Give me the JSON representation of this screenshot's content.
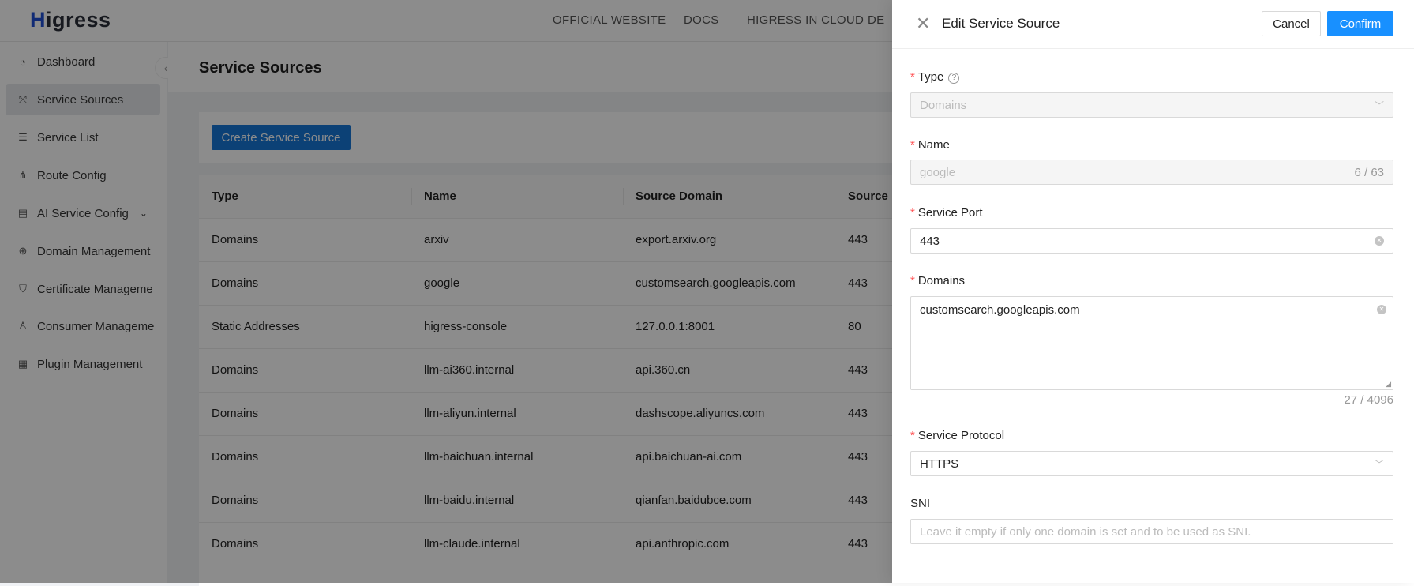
{
  "app": {
    "logo": "Higress",
    "logo_accent": "#1f4fd6"
  },
  "topnav": [
    "OFFICIAL WEBSITE",
    "DOCS",
    "HIGRESS IN CLOUD",
    "DE"
  ],
  "sidebar": {
    "items": [
      {
        "label": "Dashboard",
        "icon": "dashboard-icon"
      },
      {
        "label": "Service Sources",
        "icon": "service-sources-icon",
        "selected": true
      },
      {
        "label": "Service List",
        "icon": "list-icon"
      },
      {
        "label": "Route Config",
        "icon": "route-icon"
      },
      {
        "label": "AI Service Config",
        "icon": "ai-icon",
        "expandable": true
      },
      {
        "label": "Domain Management",
        "icon": "globe-icon"
      },
      {
        "label": "Certificate Manageme",
        "icon": "shield-icon"
      },
      {
        "label": "Consumer Manageme",
        "icon": "user-icon"
      },
      {
        "label": "Plugin Management",
        "icon": "plugin-icon"
      }
    ]
  },
  "page": {
    "title": "Service Sources",
    "create_button": "Create Service Source"
  },
  "table": {
    "columns": [
      "Type",
      "Name",
      "Source Domain",
      "Source P"
    ],
    "rows": [
      [
        "Domains",
        "arxiv",
        "export.arxiv.org",
        "443"
      ],
      [
        "Domains",
        "google",
        "customsearch.googleapis.com",
        "443"
      ],
      [
        "Static Addresses",
        "higress-console",
        "127.0.0.1:8001",
        "80"
      ],
      [
        "Domains",
        "llm-ai360.internal",
        "api.360.cn",
        "443"
      ],
      [
        "Domains",
        "llm-aliyun.internal",
        "dashscope.aliyuncs.com",
        "443"
      ],
      [
        "Domains",
        "llm-baichuan.internal",
        "api.baichuan-ai.com",
        "443"
      ],
      [
        "Domains",
        "llm-baidu.internal",
        "qianfan.baidubce.com",
        "443"
      ],
      [
        "Domains",
        "llm-claude.internal",
        "api.anthropic.com",
        "443"
      ]
    ]
  },
  "drawer": {
    "title": "Edit Service Source",
    "cancel": "Cancel",
    "confirm": "Confirm",
    "primary_color": "#1890ff",
    "fields": {
      "type": {
        "label": "Type",
        "value": "Domains",
        "disabled": true
      },
      "name": {
        "label": "Name",
        "value": "google",
        "count": "6 / 63",
        "disabled": true
      },
      "port": {
        "label": "Service Port",
        "value": "443"
      },
      "domains": {
        "label": "Domains",
        "value": "customsearch.googleapis.com",
        "count": "27 / 4096"
      },
      "protocol": {
        "label": "Service Protocol",
        "value": "HTTPS"
      },
      "sni": {
        "label": "SNI",
        "placeholder": "Leave it empty if only one domain is set and to be used as SNI."
      }
    }
  }
}
